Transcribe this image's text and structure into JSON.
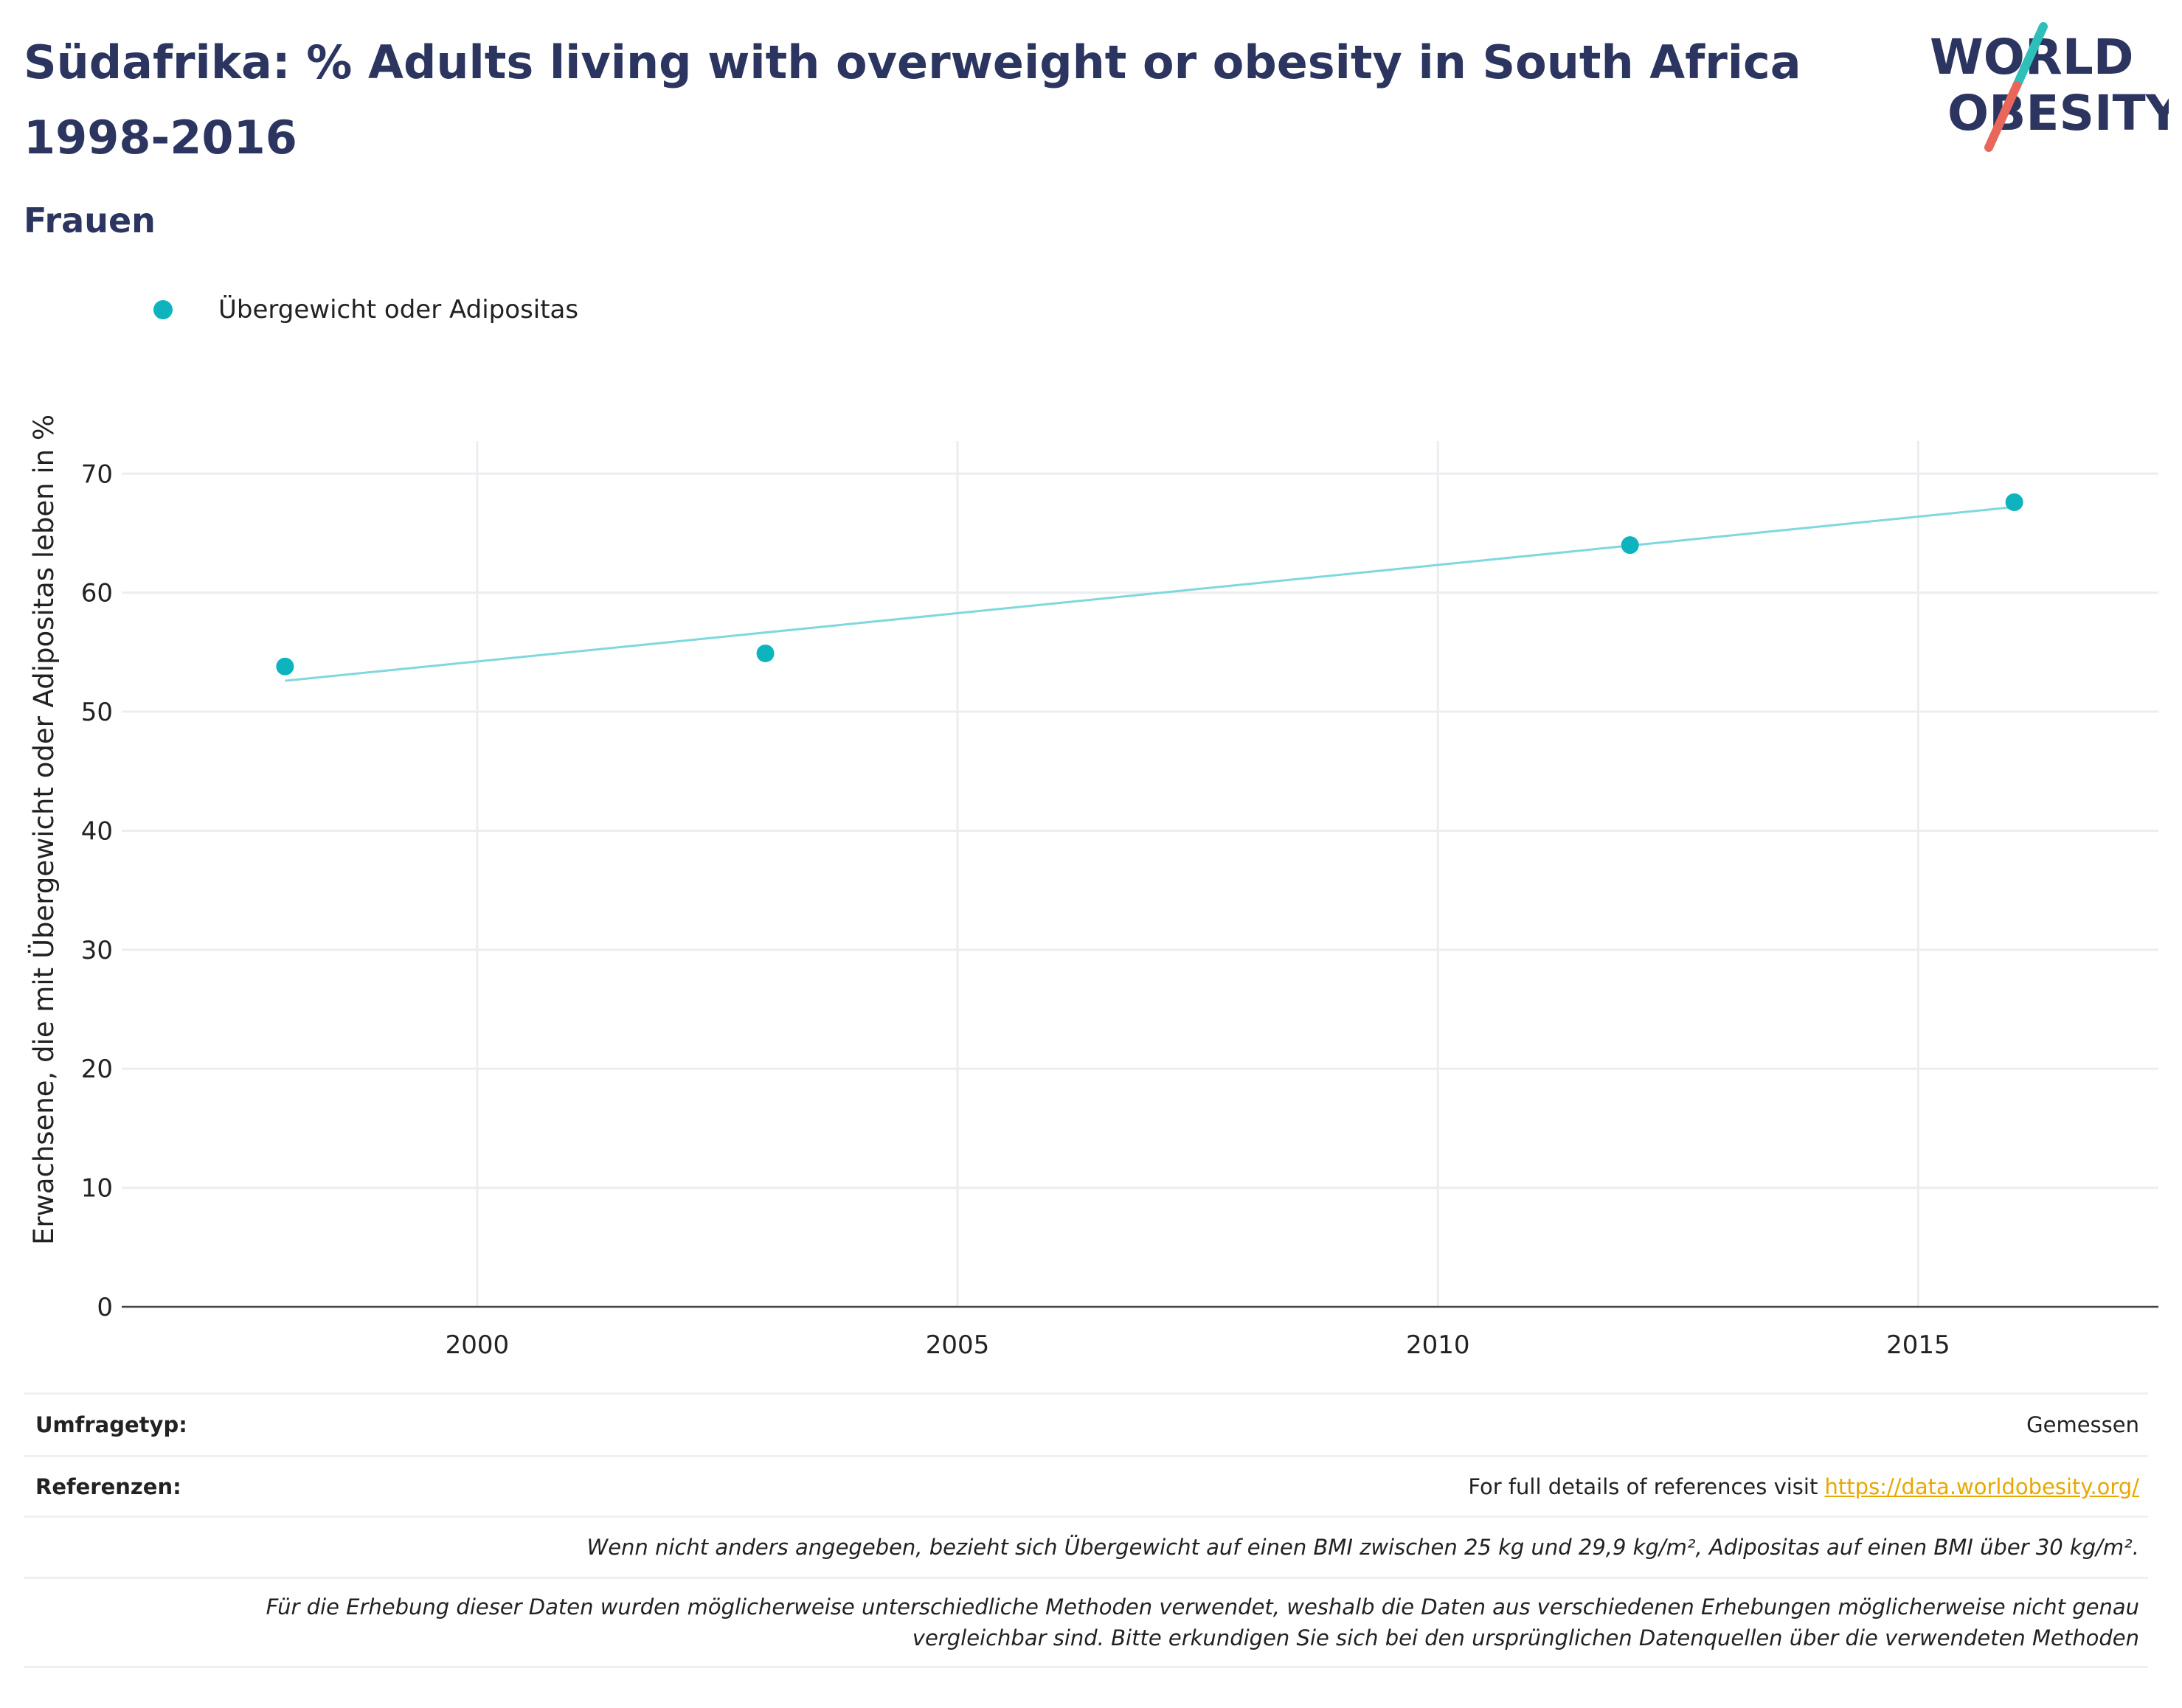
{
  "header": {
    "title": "Südafrika: % Adults living with overweight or obesity in South Africa 1998-2016",
    "subtitle": "Frauen"
  },
  "logo": {
    "line1": "WORLD",
    "line2": "OBESITY"
  },
  "legend": {
    "label": "Übergewicht oder Adipositas"
  },
  "chart_data": {
    "type": "scatter",
    "title": "Südafrika: % Adults living with overweight or obesity in South Africa 1998-2016",
    "subtitle": "Frauen",
    "ylabel": "Erwachsene, die mit Übergewicht oder Adipositas leben in %",
    "xlabel": "",
    "xlim": [
      1996.3,
      2017.5
    ],
    "ylim": [
      0,
      72
    ],
    "x_ticks": [
      2000,
      2005,
      2010,
      2015
    ],
    "y_ticks": [
      0,
      10,
      20,
      30,
      40,
      50,
      60,
      70
    ],
    "grid": true,
    "legend_position": "top-left",
    "series": [
      {
        "name": "Übergewicht oder Adipositas",
        "color": "#0db4be",
        "points": [
          {
            "x": 1998,
            "y": 53.8
          },
          {
            "x": 2003,
            "y": 54.9
          },
          {
            "x": 2012,
            "y": 64.0
          },
          {
            "x": 2016,
            "y": 67.6
          }
        ]
      }
    ],
    "trendline": {
      "color": "#7fd8dc",
      "x": [
        1998,
        2016
      ],
      "y": [
        52.6,
        67.2
      ]
    }
  },
  "notes": {
    "survey_type_key": "Umfragetyp:",
    "survey_type_value": "Gemessen",
    "references_key": "Referenzen:",
    "references_text": "For full details of references visit ",
    "references_link": "https://data.worldobesity.org/",
    "bmi_note": "Wenn nicht anders angegeben, bezieht sich Übergewicht auf einen BMI zwischen 25 kg und 29,9 kg/m², Adipositas auf einen BMI über 30 kg/m².",
    "method_note_1": "Für die Erhebung dieser Daten wurden möglicherweise unterschiedliche Methoden verwendet, weshalb die Daten aus verschiedenen Erhebungen möglicherweise nicht genau",
    "method_note_2": "vergleichbar sind. Bitte erkundigen Sie sich bei den ursprünglichen Datenquellen über die verwendeten Methoden"
  }
}
